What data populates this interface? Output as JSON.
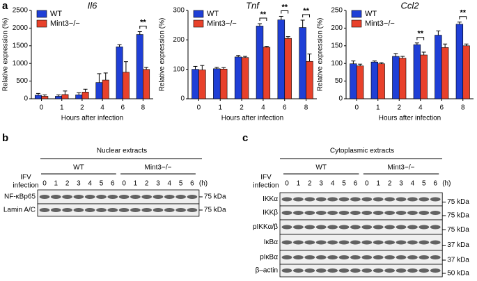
{
  "chart_data": [
    {
      "type": "bar",
      "panel_label": "a",
      "title": "Il6",
      "ylabel": "Relative expression (%)",
      "xlabel": "Hours after infection",
      "categories": [
        "0",
        "1",
        "2",
        "4",
        "6",
        "8"
      ],
      "series": [
        {
          "name": "WT",
          "color": "#1f3fd6",
          "values": [
            100,
            70,
            110,
            460,
            1470,
            1820
          ],
          "errors": [
            50,
            40,
            60,
            250,
            60,
            80
          ]
        },
        {
          "name": "Mint3−/−",
          "color": "#e8412b",
          "values": [
            70,
            120,
            190,
            530,
            750,
            830
          ],
          "errors": [
            40,
            100,
            80,
            200,
            300,
            60
          ]
        }
      ],
      "ylim": [
        0,
        2500
      ],
      "yticks": [
        0,
        500,
        1000,
        1500,
        2000,
        2500
      ],
      "annotations": [
        {
          "text": "**",
          "at": "8"
        }
      ]
    },
    {
      "type": "bar",
      "title": "Tnf",
      "ylabel": "Relative expression (%)",
      "xlabel": "Hours after infection",
      "categories": [
        "0",
        "1",
        "2",
        "4",
        "6",
        "8"
      ],
      "series": [
        {
          "name": "WT",
          "color": "#1f3fd6",
          "values": [
            100,
            102,
            142,
            247,
            268,
            242
          ],
          "errors": [
            10,
            5,
            5,
            8,
            12,
            25
          ]
        },
        {
          "name": "Mint3−/−",
          "color": "#e8412b",
          "values": [
            98,
            101,
            140,
            175,
            205,
            127
          ],
          "errors": [
            15,
            5,
            4,
            3,
            6,
            25
          ]
        }
      ],
      "ylim": [
        0,
        300
      ],
      "yticks": [
        0,
        100,
        200,
        300
      ],
      "annotations": [
        {
          "text": "**",
          "at": "4"
        },
        {
          "text": "**",
          "at": "6"
        },
        {
          "text": "**",
          "at": "8"
        }
      ]
    },
    {
      "type": "bar",
      "title": "Ccl2",
      "ylabel": "Relative expression (%)",
      "xlabel": "Hours after infection",
      "categories": [
        "0",
        "1",
        "2",
        "4",
        "6",
        "8"
      ],
      "series": [
        {
          "name": "WT",
          "color": "#1f3fd6",
          "values": [
            99,
            104,
            120,
            153,
            180,
            211
          ],
          "errors": [
            8,
            3,
            8,
            5,
            12,
            6
          ]
        },
        {
          "name": "Mint3−/−",
          "color": "#e8412b",
          "values": [
            93,
            99,
            115,
            124,
            145,
            150
          ],
          "errors": [
            5,
            3,
            5,
            8,
            10,
            5
          ]
        }
      ],
      "ylim": [
        0,
        250
      ],
      "yticks": [
        0,
        50,
        100,
        150,
        200,
        250
      ],
      "annotations": [
        {
          "text": "**",
          "at": "4"
        },
        {
          "text": "**",
          "at": "8"
        }
      ]
    }
  ],
  "blots": [
    {
      "panel_label": "b",
      "title": "Nuclear extracts",
      "groups": [
        "WT",
        "Mint3−/−"
      ],
      "treatment_label": [
        "IFV",
        "infection"
      ],
      "lanes": [
        "0",
        "1",
        "2",
        "3",
        "4",
        "5",
        "6"
      ],
      "unit": "(h)",
      "rows": [
        {
          "name": "NF-κBp65",
          "marker": "75 kDa"
        },
        {
          "name": "Lamin A/C",
          "marker": "75 kDa"
        }
      ]
    },
    {
      "panel_label": "c",
      "title": "Cytoplasmic extracts",
      "groups": [
        "WT",
        "Mint3−/−"
      ],
      "treatment_label": [
        "IFV",
        "infection"
      ],
      "lanes": [
        "0",
        "1",
        "2",
        "3",
        "4",
        "5",
        "6"
      ],
      "unit": "(h)",
      "rows": [
        {
          "name": "IKKα",
          "marker": "75 kDa"
        },
        {
          "name": "IKKβ",
          "marker": "75 kDa"
        },
        {
          "name": "pIKKα/β",
          "marker": "75 kDa"
        },
        {
          "name": "IκBα",
          "marker": "37 kDa"
        },
        {
          "name": "pIκBα",
          "marker": "37 kDa"
        },
        {
          "name": "β–actin",
          "marker": "50 kDa"
        }
      ]
    }
  ]
}
